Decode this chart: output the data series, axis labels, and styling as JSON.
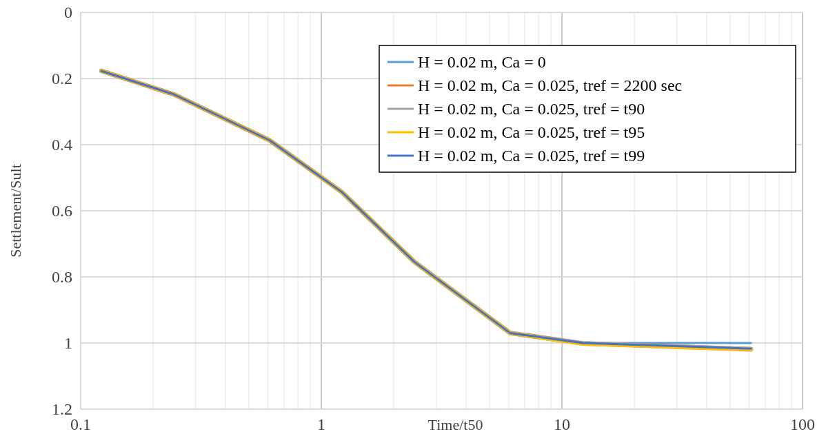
{
  "chart_data": {
    "type": "line",
    "xlabel": "Time/t50",
    "ylabel": "Settlement/Sult",
    "log": "x",
    "grid": true,
    "legend": "top right",
    "line_style": "solid",
    "marker": "none",
    "xlim": [
      0.1,
      100
    ],
    "ylim": [
      1.2,
      0
    ],
    "xticks": [
      0.1,
      {
        "value": 0.2,
        "label": null
      },
      {
        "value": 0.3,
        "label": null
      },
      {
        "value": 0.4,
        "label": null
      },
      {
        "value": 0.5,
        "label": null
      },
      {
        "value": 0.6,
        "label": null
      },
      {
        "value": 0.7,
        "label": null
      },
      {
        "value": 0.8,
        "label": null
      },
      {
        "value": 0.9,
        "label": null
      },
      1,
      {
        "value": 2,
        "label": null
      },
      {
        "value": 3,
        "label": null
      },
      {
        "value": 4,
        "label": null
      },
      {
        "value": 5,
        "label": null
      },
      {
        "value": 6,
        "label": null
      },
      {
        "value": 7,
        "label": null
      },
      {
        "value": 8,
        "label": null
      },
      {
        "value": 9,
        "label": null
      },
      10,
      {
        "value": 20,
        "label": null
      },
      {
        "value": 30,
        "label": null
      },
      {
        "value": 40,
        "label": null
      },
      {
        "value": 50,
        "label": null
      },
      {
        "value": 60,
        "label": null
      },
      {
        "value": 70,
        "label": null
      },
      {
        "value": 80,
        "label": null
      },
      {
        "value": 90,
        "label": null
      },
      100
    ],
    "yticks": [
      0,
      0.2,
      0.4,
      0.6,
      0.8,
      1,
      1.2
    ],
    "x": [
      0.122,
      0.244,
      0.61,
      1.22,
      2.44,
      6.1,
      12.2,
      61
    ],
    "series": [
      {
        "name": "H = 0.02 m, Ca = 0",
        "color": "#5b9bd5",
        "values": [
          0.177,
          0.248,
          0.387,
          0.544,
          0.755,
          0.97,
          1.0,
          1.0
        ]
      },
      {
        "name": "H = 0.02 m, Ca = 0.025, tref = 2200 sec",
        "color": "#ed7d31",
        "values": [
          0.177,
          0.248,
          0.387,
          0.544,
          0.755,
          0.97,
          1.001,
          1.019
        ]
      },
      {
        "name": "H = 0.02 m, Ca = 0.025, tref = t90",
        "color": "#a5a5a5",
        "values": [
          0.177,
          0.248,
          0.387,
          0.544,
          0.755,
          0.97,
          1.001,
          1.018
        ]
      },
      {
        "name": "H = 0.02 m, Ca = 0.025, tref = t95",
        "color": "#ffc000",
        "values": [
          0.177,
          0.248,
          0.387,
          0.544,
          0.755,
          0.97,
          1.003,
          1.02
        ]
      },
      {
        "name": "H = 0.02 m, Ca = 0.025, tref = t99",
        "color": "#4472c4",
        "values": [
          0.177,
          0.248,
          0.387,
          0.544,
          0.755,
          0.97,
          1.0,
          1.017
        ]
      }
    ]
  }
}
